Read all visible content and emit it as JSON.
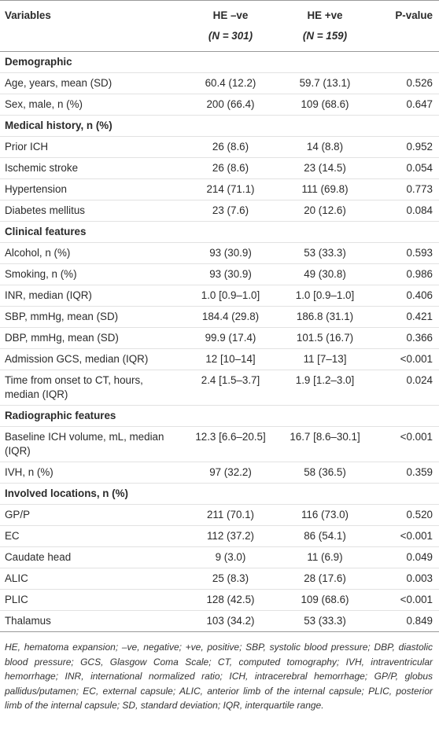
{
  "table": {
    "header": [
      [
        "Variables"
      ],
      [
        "HE –ve",
        "(N = 301)"
      ],
      [
        "HE +ve",
        "(N = 159)"
      ],
      [
        "P-value"
      ]
    ],
    "rows": [
      [
        "Demographic"
      ],
      [
        "Age, years, mean (SD)",
        "60.4 (12.2)",
        "59.7 (13.1)",
        "0.526"
      ],
      [
        "Sex, male, n (%)",
        "200 (66.4)",
        "109 (68.6)",
        "0.647"
      ],
      [
        "Medical history, n (%)"
      ],
      [
        "Prior ICH",
        "26 (8.6)",
        "14 (8.8)",
        "0.952"
      ],
      [
        "Ischemic stroke",
        "26 (8.6)",
        "23 (14.5)",
        "0.054"
      ],
      [
        "Hypertension",
        "214 (71.1)",
        "111 (69.8)",
        "0.773"
      ],
      [
        "Diabetes mellitus",
        "23 (7.6)",
        "20 (12.6)",
        "0.084"
      ],
      [
        "Clinical features"
      ],
      [
        "Alcohol, n (%)",
        "93 (30.9)",
        "53 (33.3)",
        "0.593"
      ],
      [
        "Smoking, n (%)",
        "93 (30.9)",
        "49 (30.8)",
        "0.986"
      ],
      [
        "INR, median (IQR)",
        "1.0 [0.9–1.0]",
        "1.0 [0.9–1.0]",
        "0.406"
      ],
      [
        "SBP, mmHg, mean (SD)",
        "184.4 (29.8)",
        "186.8 (31.1)",
        "0.421"
      ],
      [
        "DBP, mmHg, mean (SD)",
        "99.9 (17.4)",
        "101.5 (16.7)",
        "0.366"
      ],
      [
        "Admission GCS, median (IQR)",
        "12 [10–14]",
        "11 [7–13]",
        "<0.001"
      ],
      [
        "Time from onset to CT, hours, median (IQR)",
        "2.4 [1.5–3.7]",
        "1.9 [1.2–3.0]",
        "0.024"
      ],
      [
        "Radiographic features"
      ],
      [
        "Baseline ICH volume, mL, median (IQR)",
        "12.3 [6.6–20.5]",
        "16.7 [8.6–30.1]",
        "<0.001"
      ],
      [
        "IVH, n (%)",
        "97 (32.2)",
        "58 (36.5)",
        "0.359"
      ],
      [
        "Involved locations, n (%)"
      ],
      [
        "GP/P",
        "211 (70.1)",
        "116 (73.0)",
        "0.520"
      ],
      [
        "EC",
        "112 (37.2)",
        "86 (54.1)",
        "<0.001"
      ],
      [
        "Caudate head",
        "9 (3.0)",
        "11 (6.9)",
        "0.049"
      ],
      [
        "ALIC",
        "25 (8.3)",
        "28 (17.6)",
        "0.003"
      ],
      [
        "PLIC",
        "128 (42.5)",
        "109 (68.6)",
        "<0.001"
      ],
      [
        "Thalamus",
        "103 (34.2)",
        "53 (33.3)",
        "0.849"
      ]
    ]
  },
  "footnote": "HE, hematoma expansion; –ve, negative; +ve, positive; SBP, systolic blood pressure; DBP, diastolic blood pressure; GCS, Glasgow Coma Scale; CT, computed tomography; IVH, intraventricular hemorrhage; INR, international normalized ratio; ICH, intracerebral hemorrhage; GP/P, globus pallidus/putamen; EC, external capsule; ALIC, anterior limb of the internal capsule; PLIC, posterior limb of the internal capsule; SD, standard deviation; IQR, interquartile range."
}
